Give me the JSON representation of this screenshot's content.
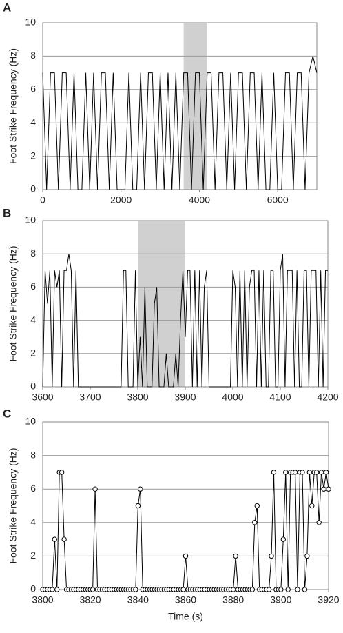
{
  "chart_data": [
    {
      "type": "line",
      "panel_label": "A",
      "ylabel": "Foot Strike Frequency (Hz)",
      "x": [
        0,
        100,
        200,
        300,
        400,
        500,
        600,
        700,
        800,
        900,
        1000,
        1100,
        1200,
        1300,
        1400,
        1500,
        1600,
        1700,
        1800,
        1900,
        2000,
        2100,
        2200,
        2300,
        2400,
        2500,
        2600,
        2700,
        2800,
        2900,
        3000,
        3100,
        3200,
        3300,
        3400,
        3500,
        3600,
        3700,
        3800,
        3900,
        4000,
        4100,
        4200,
        4300,
        4400,
        4500,
        4600,
        4700,
        4800,
        4900,
        5000,
        5100,
        5200,
        5300,
        5400,
        5500,
        5600,
        5700,
        5800,
        5900,
        6000,
        6100,
        6200,
        6300,
        6400,
        6500,
        6600,
        6700,
        6800,
        6900,
        7000
      ],
      "series": [
        {
          "color": "#000000",
          "values": [
            7,
            0,
            7,
            7,
            0,
            7,
            7,
            0,
            7,
            0,
            0,
            7,
            0,
            7,
            0,
            7,
            7,
            0,
            7,
            0,
            0,
            0,
            7,
            0,
            0,
            7,
            0,
            7,
            7,
            0,
            7,
            0,
            7,
            0,
            7,
            0,
            7,
            7,
            0,
            7,
            7,
            0,
            7,
            7,
            0,
            7,
            7,
            0,
            7,
            0,
            7,
            7,
            0,
            7,
            7,
            0,
            7,
            0,
            0,
            7,
            0,
            0,
            7,
            7,
            0,
            7,
            7,
            0,
            7,
            8,
            7
          ]
        }
      ],
      "xlim": [
        0,
        7000
      ],
      "xticks": [
        0,
        2000,
        4000,
        6000
      ],
      "ylim": [
        0,
        10
      ],
      "yticks": [
        0,
        2,
        4,
        6,
        8,
        10
      ],
      "grid": true,
      "highlight": [
        3600,
        4200
      ],
      "highlight_color": "#d0d0d0",
      "marker": "none"
    },
    {
      "type": "line",
      "panel_label": "B",
      "ylabel": "Foot Strike Frequency (Hz)",
      "x": [
        3600,
        3605,
        3610,
        3615,
        3620,
        3625,
        3630,
        3635,
        3640,
        3645,
        3650,
        3655,
        3660,
        3665,
        3670,
        3675,
        3680,
        3685,
        3690,
        3695,
        3700,
        3705,
        3710,
        3715,
        3720,
        3725,
        3730,
        3735,
        3740,
        3745,
        3750,
        3755,
        3760,
        3765,
        3770,
        3775,
        3780,
        3785,
        3790,
        3795,
        3800,
        3805,
        3810,
        3815,
        3820,
        3825,
        3830,
        3835,
        3840,
        3845,
        3850,
        3855,
        3860,
        3865,
        3870,
        3875,
        3880,
        3885,
        3890,
        3895,
        3900,
        3905,
        3910,
        3915,
        3920,
        3925,
        3930,
        3935,
        3940,
        3945,
        3950,
        3955,
        3960,
        3965,
        3970,
        3975,
        3980,
        3985,
        3990,
        3995,
        4000,
        4005,
        4010,
        4015,
        4020,
        4025,
        4030,
        4035,
        4040,
        4045,
        4050,
        4055,
        4060,
        4065,
        4070,
        4075,
        4080,
        4085,
        4090,
        4095,
        4100,
        4105,
        4110,
        4115,
        4120,
        4125,
        4130,
        4135,
        4140,
        4145,
        4150,
        4155,
        4160,
        4165,
        4170,
        4175,
        4180,
        4185,
        4190,
        4195,
        4200
      ],
      "series": [
        {
          "color": "#000000",
          "values": [
            0,
            7,
            5,
            7,
            0,
            7,
            6,
            7,
            0,
            7,
            7,
            8,
            7,
            0,
            7,
            0,
            0,
            0,
            0,
            0,
            0,
            0,
            0,
            0,
            0,
            0,
            0,
            0,
            0,
            0,
            0,
            0,
            0,
            0,
            7,
            7,
            0,
            0,
            0,
            7,
            0,
            3,
            0,
            6,
            0,
            0,
            0,
            5,
            6,
            0,
            0,
            0,
            2,
            0,
            0,
            0,
            2,
            0,
            4,
            7,
            3,
            7,
            7,
            0,
            7,
            0,
            7,
            0,
            6,
            7,
            0,
            0,
            0,
            0,
            0,
            0,
            0,
            0,
            0,
            0,
            7,
            6,
            0,
            7,
            0,
            7,
            0,
            6,
            7,
            7,
            0,
            7,
            0,
            7,
            0,
            0,
            7,
            7,
            0,
            0,
            7,
            8,
            0,
            7,
            7,
            7,
            0,
            7,
            0,
            0,
            7,
            7,
            0,
            7,
            7,
            7,
            0,
            7,
            0,
            7,
            7
          ]
        }
      ],
      "xlim": [
        3600,
        4200
      ],
      "xticks": [
        3600,
        3700,
        3800,
        3900,
        4000,
        4100,
        4200
      ],
      "ylim": [
        0,
        10
      ],
      "yticks": [
        0,
        2,
        4,
        6,
        8,
        10
      ],
      "grid": true,
      "highlight": [
        3800,
        3900
      ],
      "highlight_color": "#d0d0d0",
      "marker": "none"
    },
    {
      "type": "line",
      "panel_label": "C",
      "ylabel": "Foot Strike Frequency (Hz)",
      "xlabel": "Time (s)",
      "x": [
        3800,
        3801,
        3802,
        3803,
        3804,
        3805,
        3806,
        3807,
        3808,
        3809,
        3810,
        3811,
        3812,
        3813,
        3814,
        3815,
        3816,
        3817,
        3818,
        3819,
        3820,
        3821,
        3822,
        3823,
        3824,
        3825,
        3826,
        3827,
        3828,
        3829,
        3830,
        3831,
        3832,
        3833,
        3834,
        3835,
        3836,
        3837,
        3838,
        3839,
        3840,
        3841,
        3842,
        3843,
        3844,
        3845,
        3846,
        3847,
        3848,
        3849,
        3850,
        3851,
        3852,
        3853,
        3854,
        3855,
        3856,
        3857,
        3858,
        3859,
        3860,
        3861,
        3862,
        3863,
        3864,
        3865,
        3866,
        3867,
        3868,
        3869,
        3870,
        3871,
        3872,
        3873,
        3874,
        3875,
        3876,
        3877,
        3878,
        3879,
        3880,
        3881,
        3882,
        3883,
        3884,
        3885,
        3886,
        3887,
        3888,
        3889,
        3890,
        3891,
        3892,
        3893,
        3894,
        3895,
        3896,
        3897,
        3898,
        3899,
        3900,
        3901,
        3902,
        3903,
        3904,
        3905,
        3906,
        3907,
        3908,
        3909,
        3910,
        3911,
        3912,
        3913,
        3914,
        3915,
        3916,
        3917,
        3918,
        3919,
        3920
      ],
      "series": [
        {
          "color": "#000000",
          "values": [
            0,
            0,
            0,
            0,
            0,
            3,
            0,
            7,
            7,
            3,
            0,
            0,
            0,
            0,
            0,
            0,
            0,
            0,
            0,
            0,
            0,
            0,
            6,
            0,
            0,
            0,
            0,
            0,
            0,
            0,
            0,
            0,
            0,
            0,
            0,
            0,
            0,
            0,
            0,
            0,
            5,
            6,
            0,
            0,
            0,
            0,
            0,
            0,
            0,
            0,
            0,
            0,
            0,
            0,
            0,
            0,
            0,
            0,
            0,
            0,
            2,
            0,
            0,
            0,
            0,
            0,
            0,
            0,
            0,
            0,
            0,
            0,
            0,
            0,
            0,
            0,
            0,
            0,
            0,
            0,
            0,
            2,
            0,
            0,
            0,
            0,
            0,
            0,
            0,
            4,
            5,
            0,
            0,
            0,
            0,
            0,
            2,
            7,
            0,
            0,
            0,
            3,
            7,
            0,
            7,
            7,
            7,
            0,
            7,
            7,
            0,
            2,
            7,
            5,
            7,
            7,
            4,
            7,
            6,
            7,
            6
          ]
        }
      ],
      "xlim": [
        3800,
        3920
      ],
      "xticks": [
        3800,
        3820,
        3840,
        3860,
        3880,
        3900,
        3920
      ],
      "ylim": [
        0,
        10
      ],
      "yticks": [
        0,
        2,
        4,
        6,
        8,
        10
      ],
      "grid": true,
      "marker": "circle",
      "marker_fill": "#ffffff"
    }
  ]
}
